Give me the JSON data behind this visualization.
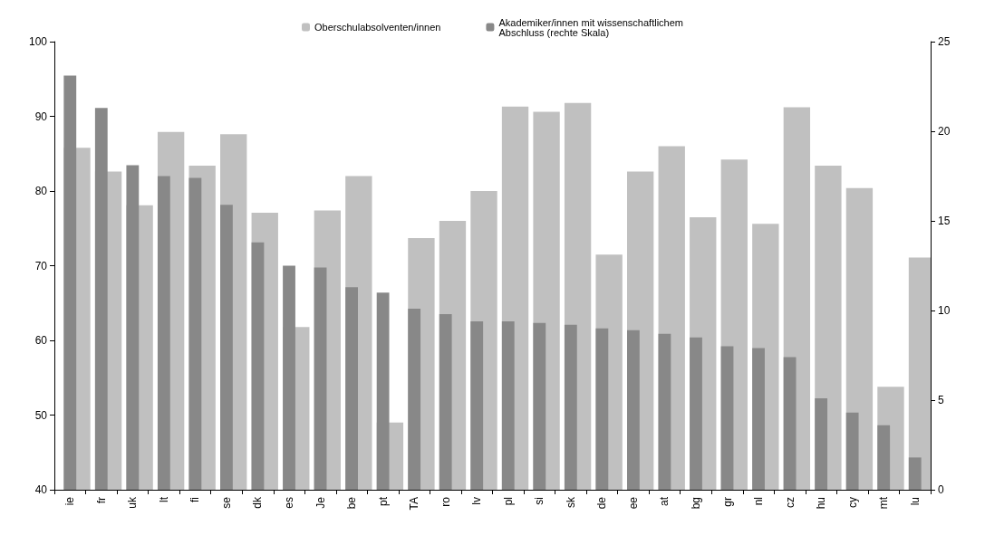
{
  "chart_data": {
    "type": "bar",
    "categories": [
      "ie",
      "fr",
      "uk",
      "lt",
      "fi",
      "se",
      "dk",
      "es",
      "Je",
      "be",
      "pt",
      "TA",
      "ro",
      "lv",
      "pl",
      "si",
      "sk",
      "de",
      "ee",
      "at",
      "bg",
      "gr",
      "nl",
      "cz",
      "hu",
      "cy",
      "mt",
      "lu"
    ],
    "series": [
      {
        "name": "Oberschulabsolventen/innen",
        "color": "#c0c0c0",
        "values": [
          85.8,
          82.6,
          78.1,
          87.9,
          83.4,
          87.6,
          77.1,
          61.8,
          77.4,
          82.0,
          49.0,
          73.7,
          76.0,
          80.0,
          91.3,
          90.6,
          91.8,
          71.5,
          82.6,
          86.0,
          76.5,
          84.2,
          75.6,
          91.2,
          83.4,
          80.4,
          53.8,
          71.1
        ]
      },
      {
        "name": "Akademiker/innen mit wissenschaftlichem\nAbschluss (rechte Skala)",
        "color": "#888888",
        "axis": "y2",
        "values": [
          23.1,
          21.3,
          18.1,
          17.5,
          17.4,
          15.9,
          13.8,
          12.5,
          12.4,
          11.3,
          11.0,
          10.1,
          9.8,
          9.4,
          9.4,
          9.3,
          9.2,
          9.0,
          8.9,
          8.7,
          8.5,
          8.0,
          7.9,
          7.4,
          5.1,
          4.3,
          3.6,
          1.8
        ]
      }
    ],
    "ylim": [
      40,
      100
    ],
    "yticks": [
      40,
      50,
      60,
      70,
      80,
      90,
      100
    ],
    "y2lim": [
      0,
      25
    ],
    "y2ticks": [
      0,
      5,
      10,
      15,
      20,
      25
    ],
    "grid": false,
    "legend": "top"
  }
}
